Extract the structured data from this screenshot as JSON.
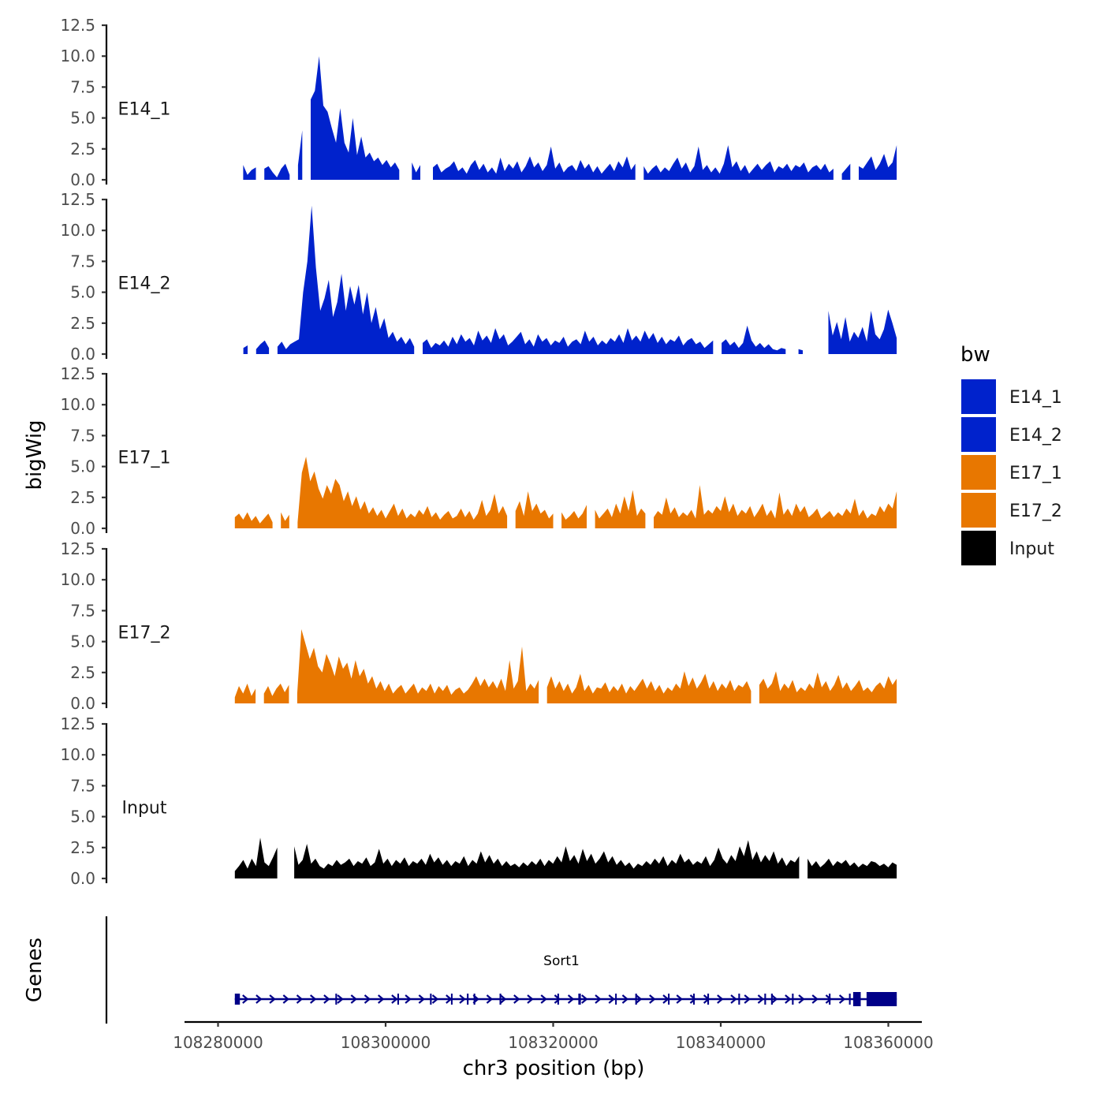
{
  "chart_data": {
    "type": "area",
    "ylabel": "bigWig",
    "xlabel": "chr3 position (bp)",
    "gene_track_label": "Genes",
    "ylim": [
      0,
      12.5
    ],
    "y_ticks": [
      "0.0",
      "2.5",
      "5.0",
      "7.5",
      "10.0",
      "12.5"
    ],
    "xlim": [
      108276000,
      108364000
    ],
    "x_ticks": [
      108280000,
      108300000,
      108320000,
      108340000,
      108360000
    ],
    "x_tick_labels": [
      "108280000",
      "108300000",
      "108320000",
      "108340000",
      "108360000"
    ],
    "data_start": 108282000,
    "data_end": 108361000,
    "legend": {
      "title": "bw",
      "items": [
        {
          "label": "E14_1",
          "color": "#0022CC"
        },
        {
          "label": "E14_2",
          "color": "#0022CC"
        },
        {
          "label": "E17_1",
          "color": "#E87700"
        },
        {
          "label": "E17_2",
          "color": "#E87700"
        },
        {
          "label": "Input",
          "color": "#000000"
        }
      ]
    },
    "series": [
      {
        "name": "E14_1",
        "color": "#0022CC",
        "gaps": [
          [
            108282300,
            108282900
          ],
          [
            108284700,
            108285300
          ],
          [
            108288900,
            108289400
          ],
          [
            108290400,
            108291000
          ],
          [
            108302000,
            108303000
          ],
          [
            108304600,
            108305200
          ],
          [
            108330200,
            108330700
          ],
          [
            108353500,
            108354000
          ],
          [
            108355600,
            108356100
          ]
        ],
        "baseline": 0.5,
        "values": [
          0.2,
          0.7,
          1.2,
          0.4,
          0.8,
          1.0,
          0.3,
          0.9,
          1.1,
          0.6,
          0.2,
          0.9,
          1.3,
          0.4,
          0.6,
          1.2,
          4.0,
          5.2,
          6.5,
          7.2,
          10.0,
          6.0,
          5.5,
          4.2,
          3.0,
          5.8,
          3.0,
          2.2,
          5.0,
          2.0,
          3.5,
          1.8,
          2.2,
          1.5,
          1.8,
          1.2,
          1.6,
          1.0,
          1.4,
          0.8,
          1.2,
          0.7,
          1.4,
          0.6,
          1.2,
          1.5,
          0.5,
          1.0,
          1.3,
          0.6,
          0.9,
          1.1,
          1.5,
          0.7,
          1.0,
          0.5,
          1.2,
          1.6,
          0.8,
          1.3,
          0.6,
          1.0,
          0.5,
          1.8,
          0.7,
          1.3,
          0.9,
          1.5,
          0.6,
          1.1,
          1.9,
          1.0,
          1.4,
          0.7,
          1.2,
          2.7,
          0.9,
          1.4,
          0.6,
          1.0,
          1.2,
          0.7,
          1.6,
          0.9,
          1.3,
          0.6,
          1.1,
          0.5,
          0.9,
          1.3,
          0.7,
          1.5,
          1.0,
          1.9,
          0.8,
          1.3,
          0.6,
          1.1,
          0.5,
          0.9,
          1.2,
          0.6,
          1.0,
          0.7,
          1.3,
          1.8,
          0.9,
          1.4,
          0.6,
          1.1,
          2.7,
          0.8,
          1.2,
          0.6,
          1.0,
          0.5,
          1.3,
          2.8,
          1.0,
          1.5,
          0.7,
          1.2,
          0.5,
          0.9,
          1.3,
          0.8,
          1.2,
          1.5,
          0.6,
          1.1,
          0.9,
          1.3,
          0.7,
          1.2,
          1.0,
          1.4,
          0.6,
          1.0,
          1.2,
          0.8,
          1.3,
          0.6,
          0.9,
          1.2,
          0.5,
          0.9,
          1.3,
          0.7,
          1.1,
          0.9,
          1.4,
          1.9,
          0.8,
          1.3,
          2.1,
          1.0,
          1.4,
          2.8
        ]
      },
      {
        "name": "E14_2",
        "color": "#0022CC",
        "gaps": [
          [
            108282200,
            108282800
          ],
          [
            108283700,
            108284300
          ],
          [
            108286300,
            108287000
          ],
          [
            108288200,
            108288500
          ],
          [
            108303800,
            108304400
          ],
          [
            108339200,
            108339800
          ],
          [
            108348000,
            108349000
          ],
          [
            108350200,
            108351400
          ],
          [
            108352000,
            108352700
          ]
        ],
        "baseline": 0.5,
        "values": [
          0.3,
          1.0,
          0.5,
          0.7,
          1.2,
          0.4,
          0.8,
          1.1,
          0.5,
          0.9,
          0.6,
          1.0,
          0.4,
          0.8,
          1.0,
          1.2,
          5.0,
          7.5,
          12.0,
          7.0,
          3.5,
          4.5,
          6.0,
          3.0,
          4.2,
          6.5,
          3.5,
          5.5,
          4.0,
          5.6,
          3.2,
          5.0,
          2.5,
          3.8,
          2.0,
          2.9,
          1.3,
          1.8,
          1.0,
          1.4,
          0.8,
          1.3,
          0.6,
          1.1,
          0.9,
          1.2,
          0.5,
          0.9,
          0.7,
          1.1,
          0.6,
          1.4,
          0.8,
          1.6,
          1.0,
          1.3,
          0.7,
          1.9,
          1.1,
          1.5,
          0.9,
          2.1,
          1.2,
          1.6,
          0.7,
          1.0,
          1.4,
          1.8,
          0.8,
          1.2,
          0.6,
          1.6,
          1.0,
          1.3,
          0.7,
          1.1,
          0.9,
          1.4,
          0.6,
          1.0,
          1.2,
          0.8,
          1.9,
          1.0,
          1.4,
          0.7,
          1.1,
          0.8,
          1.3,
          1.0,
          1.6,
          0.9,
          2.1,
          1.1,
          1.5,
          1.0,
          1.9,
          1.2,
          1.7,
          0.9,
          1.4,
          0.8,
          1.2,
          1.0,
          1.5,
          0.7,
          1.1,
          1.3,
          0.8,
          1.0,
          0.5,
          0.8,
          1.1,
          0.6,
          0.9,
          1.2,
          0.7,
          1.0,
          0.5,
          0.9,
          2.3,
          1.1,
          0.6,
          0.9,
          0.5,
          0.8,
          0.4,
          0.3,
          0.5,
          0.4,
          0.3,
          0.6,
          0.4,
          0.3,
          0.5,
          0.6,
          1.1,
          1.8,
          1.3,
          3.5,
          1.5,
          2.6,
          1.2,
          3.0,
          1.0,
          1.8,
          1.3,
          2.2,
          1.0,
          3.5,
          1.6,
          1.2,
          2.0,
          3.6,
          2.5,
          1.3
        ]
      },
      {
        "name": "E17_1",
        "color": "#E87700",
        "gaps": [
          [
            108286800,
            108287300
          ],
          [
            108288800,
            108289200
          ],
          [
            108314700,
            108315200
          ],
          [
            108320500,
            108320900
          ],
          [
            108324200,
            108324600
          ],
          [
            108331400,
            108331800
          ]
        ],
        "baseline": 0.5,
        "values": [
          0.9,
          1.2,
          0.7,
          1.3,
          0.6,
          1.0,
          0.4,
          0.8,
          1.2,
          0.5,
          0.9,
          1.3,
          0.6,
          1.1,
          0.7,
          0.5,
          4.5,
          5.8,
          3.8,
          4.6,
          3.2,
          2.4,
          3.5,
          2.8,
          4.0,
          3.5,
          2.2,
          3.0,
          1.8,
          2.6,
          1.5,
          2.2,
          1.2,
          1.7,
          1.0,
          1.5,
          0.8,
          1.4,
          2.0,
          1.0,
          1.6,
          0.8,
          1.2,
          0.9,
          1.5,
          1.1,
          1.8,
          0.9,
          1.3,
          0.7,
          1.1,
          1.4,
          0.8,
          1.0,
          1.6,
          0.9,
          1.4,
          0.7,
          1.2,
          2.3,
          1.0,
          1.5,
          2.8,
          1.2,
          1.8,
          1.0,
          3.0,
          1.4,
          2.2,
          1.0,
          3.0,
          1.4,
          2.0,
          1.2,
          1.5,
          0.8,
          1.2,
          1.0,
          1.3,
          0.7,
          1.0,
          1.4,
          0.8,
          1.2,
          1.9,
          1.0,
          1.5,
          0.8,
          1.2,
          1.6,
          0.9,
          2.0,
          1.2,
          2.6,
          1.4,
          3.1,
          1.0,
          1.6,
          1.2,
          2.0,
          0.9,
          1.4,
          1.1,
          2.5,
          1.2,
          1.7,
          0.9,
          1.3,
          1.0,
          1.5,
          0.8,
          3.5,
          1.1,
          1.5,
          1.2,
          1.8,
          1.4,
          2.6,
          1.3,
          2.0,
          1.0,
          1.5,
          1.2,
          1.8,
          0.9,
          1.4,
          2.0,
          1.0,
          1.5,
          0.8,
          2.9,
          1.1,
          1.6,
          1.0,
          2.0,
          1.3,
          1.8,
          0.9,
          1.2,
          1.6,
          0.8,
          1.1,
          1.4,
          0.9,
          1.3,
          1.0,
          1.6,
          1.2,
          2.4,
          1.0,
          1.5,
          0.8,
          1.2,
          1.0,
          1.8,
          1.3,
          2.0,
          1.6,
          3.0
        ]
      },
      {
        "name": "E17_2",
        "color": "#E87700",
        "gaps": [
          [
            108284800,
            108285200
          ],
          [
            108288600,
            108289100
          ],
          [
            108307900,
            108308300
          ],
          [
            108318600,
            108319000
          ],
          [
            108343800,
            108344200
          ]
        ],
        "baseline": 0.5,
        "values": [
          0.5,
          1.4,
          0.8,
          1.6,
          0.6,
          1.2,
          2.2,
          0.8,
          1.4,
          0.6,
          1.2,
          1.6,
          0.9,
          1.5,
          0.6,
          0.8,
          6.0,
          4.8,
          3.6,
          4.5,
          3.0,
          2.5,
          4.0,
          3.2,
          2.2,
          3.8,
          2.8,
          3.3,
          2.0,
          3.5,
          2.2,
          2.8,
          1.6,
          2.2,
          1.2,
          1.8,
          1.0,
          1.6,
          0.8,
          1.2,
          1.5,
          0.8,
          1.2,
          1.6,
          0.8,
          1.3,
          1.0,
          1.6,
          0.8,
          1.4,
          1.0,
          1.5,
          0.7,
          1.1,
          1.3,
          0.8,
          1.1,
          1.6,
          2.2,
          1.4,
          2.0,
          1.3,
          1.8,
          1.2,
          2.0,
          1.0,
          3.5,
          1.2,
          1.8,
          4.6,
          1.0,
          1.6,
          1.2,
          1.9,
          0.9,
          1.3,
          2.2,
          1.2,
          1.8,
          1.0,
          1.6,
          0.8,
          1.3,
          2.4,
          1.0,
          1.5,
          0.8,
          1.3,
          1.2,
          1.7,
          0.9,
          1.4,
          1.0,
          1.6,
          0.8,
          1.4,
          1.0,
          1.5,
          2.0,
          1.2,
          1.8,
          1.0,
          1.5,
          0.8,
          1.3,
          1.0,
          1.6,
          1.2,
          2.6,
          1.4,
          2.1,
          1.2,
          1.7,
          2.4,
          1.2,
          1.8,
          1.0,
          1.6,
          1.2,
          1.9,
          1.0,
          1.5,
          1.3,
          1.8,
          1.0,
          2.8,
          1.5,
          2.0,
          1.2,
          1.6,
          2.6,
          1.0,
          1.6,
          1.2,
          1.9,
          0.9,
          1.3,
          1.0,
          1.6,
          1.2,
          2.5,
          1.3,
          1.8,
          1.0,
          1.5,
          2.3,
          1.2,
          1.7,
          1.0,
          1.4,
          1.9,
          1.0,
          1.3,
          0.9,
          1.4,
          1.7,
          1.2,
          2.2,
          1.5,
          2.0
        ]
      },
      {
        "name": "Input",
        "color": "#000000",
        "gaps": [
          [
            108287300,
            108288700
          ],
          [
            108349800,
            108350300
          ]
        ],
        "baseline": 0.5,
        "values": [
          0.6,
          1.0,
          1.5,
          0.8,
          1.6,
          1.0,
          3.3,
          1.3,
          1.0,
          1.7,
          2.5,
          1.2,
          2.0,
          1.4,
          2.6,
          1.1,
          1.5,
          2.8,
          1.2,
          1.6,
          1.0,
          0.8,
          1.2,
          1.0,
          1.5,
          1.1,
          1.3,
          1.6,
          1.0,
          1.4,
          1.2,
          1.7,
          1.0,
          1.3,
          2.4,
          1.2,
          1.6,
          1.0,
          1.5,
          1.2,
          1.7,
          1.0,
          1.4,
          1.2,
          1.6,
          1.1,
          2.0,
          1.3,
          1.7,
          1.1,
          1.5,
          1.0,
          1.4,
          1.2,
          1.8,
          1.0,
          1.5,
          1.2,
          2.2,
          1.3,
          1.9,
          1.2,
          1.6,
          1.0,
          1.4,
          1.0,
          1.2,
          0.9,
          1.3,
          1.0,
          1.4,
          1.1,
          1.6,
          1.0,
          1.5,
          1.2,
          1.8,
          1.3,
          2.6,
          1.4,
          1.9,
          1.2,
          2.4,
          1.4,
          2.0,
          1.2,
          1.6,
          2.2,
          1.3,
          1.8,
          1.1,
          1.5,
          1.0,
          1.3,
          0.8,
          1.2,
          1.0,
          1.4,
          1.1,
          1.6,
          1.2,
          1.8,
          1.0,
          1.5,
          1.2,
          2.0,
          1.3,
          1.6,
          1.1,
          1.4,
          1.2,
          1.8,
          1.0,
          1.5,
          2.5,
          1.6,
          1.2,
          1.9,
          1.4,
          2.6,
          1.8,
          3.1,
          1.5,
          2.2,
          1.3,
          1.9,
          1.4,
          2.2,
          1.2,
          1.7,
          1.0,
          1.5,
          1.3,
          1.8,
          1.2,
          1.6,
          1.0,
          1.4,
          0.9,
          1.2,
          1.6,
          1.0,
          1.4,
          1.2,
          1.5,
          1.0,
          1.3,
          0.9,
          1.2,
          1.0,
          1.4,
          1.3,
          1.0,
          1.2,
          0.9,
          1.3,
          1.1
        ]
      }
    ],
    "genes": [
      {
        "name": "Sort1",
        "strand": "+",
        "start": 108282000,
        "end": 108361000,
        "exons": [
          [
            108282000,
            108282600
          ],
          [
            108294000,
            108294200
          ],
          [
            108301400,
            108301600
          ],
          [
            108305300,
            108305500
          ],
          [
            108307800,
            108307900
          ],
          [
            108309700,
            108309900
          ],
          [
            108310500,
            108310700
          ],
          [
            108313600,
            108313800
          ],
          [
            108320500,
            108320700
          ],
          [
            108323000,
            108323300
          ],
          [
            108327400,
            108327500
          ],
          [
            108329800,
            108330000
          ],
          [
            108333700,
            108333800
          ],
          [
            108336700,
            108336900
          ],
          [
            108338400,
            108338600
          ],
          [
            108342100,
            108342300
          ],
          [
            108345200,
            108345400
          ],
          [
            108346000,
            108346200
          ],
          [
            108348500,
            108348700
          ],
          [
            108352900,
            108353100
          ],
          [
            108355300,
            108355500
          ],
          [
            108355800,
            108356700
          ],
          [
            108357400,
            108361000
          ]
        ]
      }
    ]
  }
}
